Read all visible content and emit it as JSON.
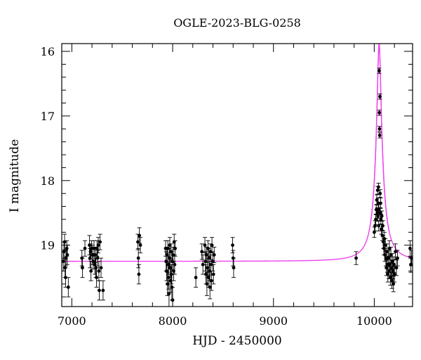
{
  "chart_data": {
    "type": "scatter",
    "title": "OGLE-2023-BLG-0258",
    "xlabel": "HJD - 2450000",
    "ylabel": "I magnitude",
    "xlim": [
      6900,
      10380
    ],
    "ylim": [
      19.95,
      15.88
    ],
    "y_inverted": true,
    "grid": false,
    "x_ticks": [
      7000,
      8000,
      9000,
      10000
    ],
    "x_tick_labels": [
      "7000",
      "8000",
      "9000",
      "10000"
    ],
    "y_ticks": [
      16,
      17,
      18,
      19
    ],
    "y_tick_labels": [
      "16",
      "17",
      "18",
      "19"
    ],
    "colors": {
      "points": "#000000",
      "model": "#ee44ee"
    },
    "model": {
      "baseline_mag": 19.25,
      "peak_mag": 15.88,
      "t0": 10048,
      "half_width": 16
    },
    "series": [
      {
        "kind": "observations",
        "points": [
          {
            "x": 6915,
            "y": 19.25,
            "err": 0.15
          },
          {
            "x": 6922,
            "y": 19.1,
            "err": 0.15
          },
          {
            "x": 6928,
            "y": 18.95,
            "err": 0.12
          },
          {
            "x": 6933,
            "y": 19.35,
            "err": 0.15
          },
          {
            "x": 6938,
            "y": 19.5,
            "err": 0.15
          },
          {
            "x": 6942,
            "y": 19.2,
            "err": 0.12
          },
          {
            "x": 6950,
            "y": 19.05,
            "err": 0.12
          },
          {
            "x": 6955,
            "y": 19.15,
            "err": 0.15
          },
          {
            "x": 6965,
            "y": 19.65,
            "err": 0.15
          },
          {
            "x": 7100,
            "y": 19.2,
            "err": 0.12
          },
          {
            "x": 7105,
            "y": 19.35,
            "err": 0.15
          },
          {
            "x": 7130,
            "y": 19.05,
            "err": 0.12
          },
          {
            "x": 7175,
            "y": 19.0,
            "err": 0.15
          },
          {
            "x": 7180,
            "y": 19.2,
            "err": 0.15
          },
          {
            "x": 7185,
            "y": 19.1,
            "err": 0.12
          },
          {
            "x": 7190,
            "y": 19.4,
            "err": 0.15
          },
          {
            "x": 7195,
            "y": 19.05,
            "err": 0.12
          },
          {
            "x": 7205,
            "y": 19.15,
            "err": 0.15
          },
          {
            "x": 7212,
            "y": 19.25,
            "err": 0.12
          },
          {
            "x": 7220,
            "y": 19.05,
            "err": 0.12
          },
          {
            "x": 7228,
            "y": 19.3,
            "err": 0.15
          },
          {
            "x": 7232,
            "y": 19.15,
            "err": 0.12
          },
          {
            "x": 7238,
            "y": 19.35,
            "err": 0.15
          },
          {
            "x": 7245,
            "y": 19.5,
            "err": 0.15
          },
          {
            "x": 7250,
            "y": 19.05,
            "err": 0.12
          },
          {
            "x": 7255,
            "y": 19.2,
            "err": 0.12
          },
          {
            "x": 7262,
            "y": 19.0,
            "err": 0.12
          },
          {
            "x": 7268,
            "y": 19.4,
            "err": 0.15
          },
          {
            "x": 7272,
            "y": 19.7,
            "err": 0.15
          },
          {
            "x": 7280,
            "y": 18.95,
            "err": 0.12
          },
          {
            "x": 7290,
            "y": 19.35,
            "err": 0.15
          },
          {
            "x": 7310,
            "y": 19.7,
            "err": 0.15
          },
          {
            "x": 7655,
            "y": 18.95,
            "err": 0.12
          },
          {
            "x": 7660,
            "y": 19.2,
            "err": 0.15
          },
          {
            "x": 7665,
            "y": 19.45,
            "err": 0.15
          },
          {
            "x": 7670,
            "y": 18.85,
            "err": 0.12
          },
          {
            "x": 7680,
            "y": 19.0,
            "err": 0.12
          },
          {
            "x": 7930,
            "y": 19.05,
            "err": 0.12
          },
          {
            "x": 7935,
            "y": 19.25,
            "err": 0.15
          },
          {
            "x": 7940,
            "y": 19.4,
            "err": 0.15
          },
          {
            "x": 7944,
            "y": 19.15,
            "err": 0.12
          },
          {
            "x": 7948,
            "y": 19.6,
            "err": 0.18
          },
          {
            "x": 7952,
            "y": 19.05,
            "err": 0.12
          },
          {
            "x": 7956,
            "y": 19.3,
            "err": 0.15
          },
          {
            "x": 7960,
            "y": 19.5,
            "err": 0.18
          },
          {
            "x": 7964,
            "y": 19.75,
            "err": 0.2
          },
          {
            "x": 7968,
            "y": 19.2,
            "err": 0.15
          },
          {
            "x": 7972,
            "y": 19.0,
            "err": 0.12
          },
          {
            "x": 7976,
            "y": 19.35,
            "err": 0.15
          },
          {
            "x": 7980,
            "y": 19.55,
            "err": 0.18
          },
          {
            "x": 7984,
            "y": 19.1,
            "err": 0.12
          },
          {
            "x": 7988,
            "y": 19.45,
            "err": 0.15
          },
          {
            "x": 7992,
            "y": 19.65,
            "err": 0.2
          },
          {
            "x": 7996,
            "y": 19.25,
            "err": 0.15
          },
          {
            "x": 8000,
            "y": 19.85,
            "err": 0.2
          },
          {
            "x": 8005,
            "y": 19.15,
            "err": 0.12
          },
          {
            "x": 8010,
            "y": 19.4,
            "err": 0.15
          },
          {
            "x": 8015,
            "y": 18.95,
            "err": 0.12
          },
          {
            "x": 8020,
            "y": 19.3,
            "err": 0.15
          },
          {
            "x": 8025,
            "y": 19.05,
            "err": 0.12
          },
          {
            "x": 8230,
            "y": 19.5,
            "err": 0.15
          },
          {
            "x": 8290,
            "y": 19.1,
            "err": 0.12
          },
          {
            "x": 8300,
            "y": 19.3,
            "err": 0.15
          },
          {
            "x": 8320,
            "y": 19.0,
            "err": 0.12
          },
          {
            "x": 8325,
            "y": 19.25,
            "err": 0.15
          },
          {
            "x": 8330,
            "y": 19.45,
            "err": 0.15
          },
          {
            "x": 8335,
            "y": 19.15,
            "err": 0.12
          },
          {
            "x": 8340,
            "y": 19.6,
            "err": 0.18
          },
          {
            "x": 8345,
            "y": 19.35,
            "err": 0.15
          },
          {
            "x": 8350,
            "y": 19.05,
            "err": 0.12
          },
          {
            "x": 8355,
            "y": 19.5,
            "err": 0.15
          },
          {
            "x": 8360,
            "y": 19.2,
            "err": 0.15
          },
          {
            "x": 8365,
            "y": 19.4,
            "err": 0.15
          },
          {
            "x": 8370,
            "y": 19.65,
            "err": 0.18
          },
          {
            "x": 8375,
            "y": 19.1,
            "err": 0.12
          },
          {
            "x": 8380,
            "y": 19.3,
            "err": 0.15
          },
          {
            "x": 8385,
            "y": 19.55,
            "err": 0.15
          },
          {
            "x": 8390,
            "y": 19.0,
            "err": 0.12
          },
          {
            "x": 8398,
            "y": 19.25,
            "err": 0.15
          },
          {
            "x": 8405,
            "y": 19.45,
            "err": 0.15
          },
          {
            "x": 8412,
            "y": 19.15,
            "err": 0.12
          },
          {
            "x": 8595,
            "y": 19.0,
            "err": 0.12
          },
          {
            "x": 8600,
            "y": 19.2,
            "err": 0.12
          },
          {
            "x": 8605,
            "y": 19.35,
            "err": 0.15
          },
          {
            "x": 9820,
            "y": 19.2,
            "err": 0.1
          },
          {
            "x": 10000,
            "y": 18.8,
            "err": 0.08
          },
          {
            "x": 10008,
            "y": 18.7,
            "err": 0.08
          },
          {
            "x": 10015,
            "y": 18.6,
            "err": 0.08
          },
          {
            "x": 10020,
            "y": 18.45,
            "err": 0.08
          },
          {
            "x": 10025,
            "y": 18.3,
            "err": 0.08
          },
          {
            "x": 10030,
            "y": 18.5,
            "err": 0.08
          },
          {
            "x": 10033,
            "y": 18.15,
            "err": 0.06
          },
          {
            "x": 10036,
            "y": 18.55,
            "err": 0.08
          },
          {
            "x": 10039,
            "y": 18.35,
            "err": 0.08
          },
          {
            "x": 10042,
            "y": 18.1,
            "err": 0.06
          },
          {
            "x": 10044,
            "y": 18.7,
            "err": 0.08
          },
          {
            "x": 10046,
            "y": 18.45,
            "err": 0.08
          },
          {
            "x": 10048,
            "y": 16.3,
            "err": 0.04
          },
          {
            "x": 10050,
            "y": 16.95,
            "err": 0.04
          },
          {
            "x": 10052,
            "y": 17.2,
            "err": 0.04
          },
          {
            "x": 10054,
            "y": 17.3,
            "err": 0.04
          },
          {
            "x": 10056,
            "y": 16.7,
            "err": 0.04
          },
          {
            "x": 10058,
            "y": 18.2,
            "err": 0.06
          },
          {
            "x": 10060,
            "y": 18.5,
            "err": 0.08
          },
          {
            "x": 10063,
            "y": 18.35,
            "err": 0.08
          },
          {
            "x": 10066,
            "y": 18.6,
            "err": 0.08
          },
          {
            "x": 10070,
            "y": 18.75,
            "err": 0.08
          },
          {
            "x": 10075,
            "y": 18.55,
            "err": 0.08
          },
          {
            "x": 10080,
            "y": 18.85,
            "err": 0.08
          },
          {
            "x": 10085,
            "y": 18.7,
            "err": 0.08
          },
          {
            "x": 10090,
            "y": 18.95,
            "err": 0.1
          },
          {
            "x": 10095,
            "y": 19.05,
            "err": 0.1
          },
          {
            "x": 10100,
            "y": 18.9,
            "err": 0.1
          },
          {
            "x": 10105,
            "y": 19.15,
            "err": 0.1
          },
          {
            "x": 10110,
            "y": 19.0,
            "err": 0.1
          },
          {
            "x": 10115,
            "y": 19.2,
            "err": 0.12
          },
          {
            "x": 10120,
            "y": 19.35,
            "err": 0.12
          },
          {
            "x": 10125,
            "y": 19.1,
            "err": 0.12
          },
          {
            "x": 10130,
            "y": 19.3,
            "err": 0.12
          },
          {
            "x": 10135,
            "y": 19.45,
            "err": 0.12
          },
          {
            "x": 10140,
            "y": 19.2,
            "err": 0.12
          },
          {
            "x": 10145,
            "y": 19.4,
            "err": 0.12
          },
          {
            "x": 10150,
            "y": 19.05,
            "err": 0.12
          },
          {
            "x": 10155,
            "y": 19.3,
            "err": 0.12
          },
          {
            "x": 10160,
            "y": 19.5,
            "err": 0.12
          },
          {
            "x": 10165,
            "y": 19.15,
            "err": 0.12
          },
          {
            "x": 10170,
            "y": 19.35,
            "err": 0.12
          },
          {
            "x": 10175,
            "y": 19.55,
            "err": 0.12
          },
          {
            "x": 10180,
            "y": 19.25,
            "err": 0.12
          },
          {
            "x": 10185,
            "y": 19.4,
            "err": 0.12
          },
          {
            "x": 10190,
            "y": 19.6,
            "err": 0.12
          },
          {
            "x": 10195,
            "y": 19.3,
            "err": 0.12
          },
          {
            "x": 10200,
            "y": 19.45,
            "err": 0.12
          },
          {
            "x": 10210,
            "y": 19.1,
            "err": 0.12
          },
          {
            "x": 10220,
            "y": 19.35,
            "err": 0.12
          },
          {
            "x": 10230,
            "y": 19.2,
            "err": 0.12
          },
          {
            "x": 10355,
            "y": 19.05,
            "err": 0.12
          },
          {
            "x": 10362,
            "y": 19.3,
            "err": 0.12
          },
          {
            "x": 10370,
            "y": 19.2,
            "err": 0.12
          }
        ]
      }
    ]
  }
}
